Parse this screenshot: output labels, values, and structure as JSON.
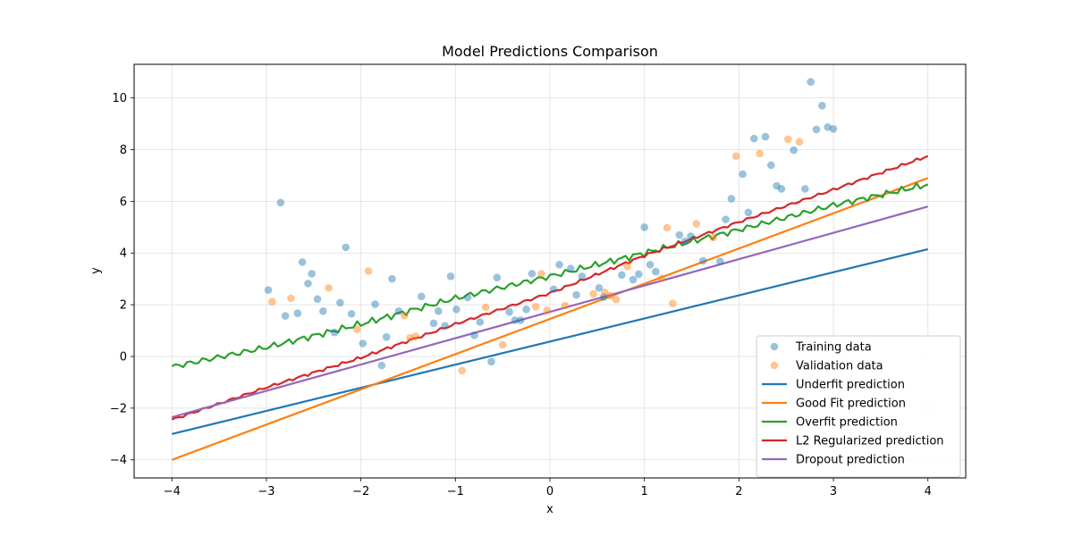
{
  "chart_data": {
    "type": "scatter",
    "title": "Model Predictions Comparison",
    "xlabel": "x",
    "ylabel": "y",
    "xlim": [
      -4.4,
      4.4
    ],
    "ylim": [
      -4.7,
      11.3
    ],
    "xticks": [
      -4,
      -3,
      -2,
      -1,
      0,
      1,
      2,
      3,
      4
    ],
    "yticks": [
      -4,
      -2,
      0,
      2,
      4,
      6,
      8,
      10
    ],
    "grid": true,
    "legend_position": "bottom-right",
    "scatter_series": [
      {
        "name": "Training data",
        "color": "#1f77b4",
        "points": [
          [
            -2.98,
            2.57
          ],
          [
            -2.85,
            5.95
          ],
          [
            -2.8,
            1.57
          ],
          [
            -2.67,
            1.67
          ],
          [
            -2.62,
            3.65
          ],
          [
            -2.56,
            2.82
          ],
          [
            -2.52,
            3.2
          ],
          [
            -2.46,
            2.22
          ],
          [
            -2.4,
            1.75
          ],
          [
            -2.28,
            0.93
          ],
          [
            -2.22,
            2.08
          ],
          [
            -2.16,
            4.22
          ],
          [
            -2.1,
            1.65
          ],
          [
            -1.98,
            0.5
          ],
          [
            -1.85,
            2.02
          ],
          [
            -1.78,
            -0.35
          ],
          [
            -1.73,
            0.75
          ],
          [
            -1.67,
            3.0
          ],
          [
            -1.6,
            1.75
          ],
          [
            -1.36,
            2.32
          ],
          [
            -1.23,
            1.28
          ],
          [
            -1.18,
            1.75
          ],
          [
            -1.11,
            1.18
          ],
          [
            -1.05,
            3.1
          ],
          [
            -0.99,
            1.82
          ],
          [
            -0.87,
            2.28
          ],
          [
            -0.8,
            0.82
          ],
          [
            -0.74,
            1.33
          ],
          [
            -0.62,
            -0.2
          ],
          [
            -0.56,
            3.05
          ],
          [
            -0.43,
            1.72
          ],
          [
            -0.37,
            1.4
          ],
          [
            -0.31,
            1.4
          ],
          [
            -0.25,
            1.82
          ],
          [
            -0.19,
            3.2
          ],
          [
            0.04,
            2.6
          ],
          [
            0.1,
            3.55
          ],
          [
            0.22,
            3.4
          ],
          [
            0.28,
            2.38
          ],
          [
            0.34,
            3.1
          ],
          [
            0.52,
            2.65
          ],
          [
            0.57,
            2.3
          ],
          [
            0.76,
            3.15
          ],
          [
            0.88,
            2.97
          ],
          [
            0.94,
            3.18
          ],
          [
            1.0,
            5.0
          ],
          [
            1.06,
            3.55
          ],
          [
            1.12,
            3.28
          ],
          [
            1.37,
            4.7
          ],
          [
            1.43,
            4.45
          ],
          [
            1.49,
            4.65
          ],
          [
            1.62,
            3.7
          ],
          [
            1.8,
            3.68
          ],
          [
            1.86,
            5.3
          ],
          [
            1.92,
            6.1
          ],
          [
            2.04,
            7.05
          ],
          [
            2.1,
            5.57
          ],
          [
            2.16,
            8.43
          ],
          [
            2.28,
            8.5
          ],
          [
            2.34,
            7.4
          ],
          [
            2.4,
            6.6
          ],
          [
            2.45,
            6.48
          ],
          [
            2.58,
            7.98
          ],
          [
            2.7,
            6.48
          ],
          [
            2.76,
            10.62
          ],
          [
            2.82,
            8.78
          ],
          [
            2.88,
            9.7
          ],
          [
            2.94,
            8.87
          ],
          [
            3.0,
            8.8
          ]
        ]
      },
      {
        "name": "Validation data",
        "color": "#ff7f0e",
        "points": [
          [
            -2.94,
            2.12
          ],
          [
            -2.74,
            2.25
          ],
          [
            -2.34,
            2.65
          ],
          [
            -2.04,
            1.05
          ],
          [
            -1.92,
            3.3
          ],
          [
            -1.54,
            1.58
          ],
          [
            -1.48,
            0.72
          ],
          [
            -1.42,
            0.78
          ],
          [
            -0.93,
            -0.55
          ],
          [
            -0.68,
            1.9
          ],
          [
            -0.5,
            0.45
          ],
          [
            -0.15,
            1.92
          ],
          [
            -0.09,
            3.2
          ],
          [
            -0.03,
            1.78
          ],
          [
            0.16,
            1.97
          ],
          [
            0.46,
            2.42
          ],
          [
            0.58,
            2.48
          ],
          [
            0.64,
            2.35
          ],
          [
            0.7,
            2.2
          ],
          [
            0.82,
            3.48
          ],
          [
            1.18,
            3.02
          ],
          [
            1.24,
            4.98
          ],
          [
            1.3,
            2.05
          ],
          [
            1.55,
            5.13
          ],
          [
            1.73,
            4.6
          ],
          [
            1.97,
            7.75
          ],
          [
            2.22,
            7.85
          ],
          [
            2.52,
            8.4
          ],
          [
            2.64,
            8.3
          ]
        ]
      }
    ],
    "line_series": [
      {
        "name": "Underfit prediction",
        "color": "#1f77b4",
        "kind": "linear",
        "x": [
          -4,
          4
        ],
        "y": [
          -3.0,
          4.15
        ]
      },
      {
        "name": "Good Fit prediction",
        "color": "#ff7f0e",
        "kind": "linear",
        "x": [
          -4,
          4
        ],
        "y": [
          -4.0,
          6.9
        ]
      },
      {
        "name": "Overfit prediction",
        "color": "#2ca02c",
        "kind": "curve",
        "x": [
          -4,
          -3,
          -2,
          -1,
          0,
          1,
          2,
          3,
          4
        ],
        "y": [
          -0.4,
          0.35,
          1.25,
          2.25,
          3.1,
          4.0,
          4.9,
          5.85,
          6.65
        ]
      },
      {
        "name": "L2 Regularized prediction",
        "color": "#d62728",
        "kind": "curve",
        "x": [
          -4,
          -3,
          -2,
          -1,
          0,
          1,
          2,
          3,
          4
        ],
        "y": [
          -2.45,
          -1.2,
          -0.05,
          1.25,
          2.45,
          3.9,
          5.2,
          6.45,
          7.75
        ]
      },
      {
        "name": "Dropout prediction",
        "color": "#9467bd",
        "kind": "linear",
        "x": [
          -4,
          4
        ],
        "y": [
          -2.35,
          5.8
        ]
      }
    ]
  }
}
